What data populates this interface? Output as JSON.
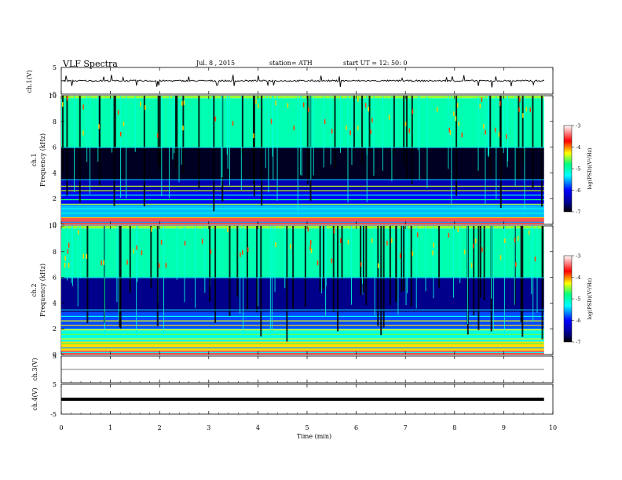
{
  "header": {
    "title": "VLF  Spectra",
    "date": "Jul.  8  ,  2015",
    "station": "station= ATH",
    "start": "start  UT  =    12: 50: 0"
  },
  "chart_data": [
    {
      "type": "line",
      "panel": "ch1-waveform",
      "ylabel": "ch.1(V)",
      "ylim": [
        -5,
        5
      ],
      "yticks": [
        "5",
        "-5"
      ],
      "x_range": [
        0,
        9.82
      ],
      "baseline_value": 0.0,
      "noise_amplitude": 0.3,
      "spike_amplitude": 1.2,
      "color": "#000000"
    },
    {
      "type": "heatmap",
      "panel": "ch1-spectrogram",
      "ylabel_channel": "ch.1",
      "ylabel": "Frequency  (kHz)",
      "ylim": [
        0,
        10
      ],
      "yticks": [
        "0",
        "2",
        "4",
        "6",
        "8",
        "10"
      ],
      "colorbar": {
        "label": "log(PSD)(V²/Hz)",
        "range": [
          -7,
          -3
        ],
        "ticks": [
          "-3",
          "-4",
          "-5",
          "-6",
          "-7"
        ]
      },
      "dominant_bands_khz": [
        {
          "from": 9.8,
          "to": 10.0,
          "level": -4.5
        },
        {
          "from": 6.0,
          "to": 9.8,
          "level": -5.0
        },
        {
          "from": 3.5,
          "to": 6.0,
          "level": -6.9
        },
        {
          "from": 2.5,
          "to": 3.5,
          "level": -6.4
        },
        {
          "from": 1.5,
          "to": 2.5,
          "level": -6.0
        },
        {
          "from": 0.5,
          "to": 1.5,
          "level": -5.5
        },
        {
          "from": 0.0,
          "to": 0.5,
          "level": -3.5
        }
      ]
    },
    {
      "type": "heatmap",
      "panel": "ch2-spectrogram",
      "ylabel_channel": "ch.2",
      "ylabel": "Frequency  (kHz)",
      "ylim": [
        0,
        10
      ],
      "yticks": [
        "0",
        "2",
        "4",
        "6",
        "8",
        "10"
      ],
      "colorbar": {
        "label": "log(PSD)(V²/Hz)",
        "range": [
          -7,
          -3
        ],
        "ticks": [
          "-3",
          "-4",
          "-5",
          "-6",
          "-7"
        ]
      },
      "dominant_bands_khz": [
        {
          "from": 9.8,
          "to": 10.0,
          "level": -4.5
        },
        {
          "from": 6.0,
          "to": 9.8,
          "level": -5.0
        },
        {
          "from": 3.3,
          "to": 6.0,
          "level": -6.6
        },
        {
          "from": 2.0,
          "to": 3.3,
          "level": -5.8
        },
        {
          "from": 1.0,
          "to": 2.0,
          "level": -5.2
        },
        {
          "from": 0.3,
          "to": 1.0,
          "level": -4.2
        },
        {
          "from": 0.0,
          "to": 0.3,
          "level": -3.5
        }
      ]
    },
    {
      "type": "line",
      "panel": "ch3-waveform",
      "ylabel": "ch.3(V)",
      "ylim": [
        -5,
        5
      ],
      "yticks": [
        "5"
      ],
      "x_range": [
        0,
        9.82
      ],
      "baseline_value": 0.0,
      "color": "#000000"
    },
    {
      "type": "line",
      "panel": "ch4-waveform",
      "ylabel": "ch.4(V)",
      "ylim": [
        -5,
        5
      ],
      "yticks": [
        "5",
        "-5"
      ],
      "x_range": [
        0,
        9.82
      ],
      "baseline_value": 0.0,
      "line_weight": "heavy",
      "color": "#000000"
    }
  ],
  "xaxis": {
    "label": "Time  (min)",
    "xlim": [
      0,
      10
    ],
    "ticks": [
      "0",
      "1",
      "2",
      "3",
      "4",
      "5",
      "6",
      "7",
      "8",
      "9",
      "10"
    ]
  }
}
